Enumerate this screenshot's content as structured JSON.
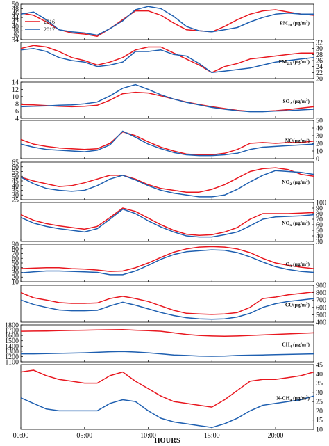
{
  "colors": {
    "y2016": "#e8171f",
    "y2017": "#1e5fb0",
    "axis": "#000000"
  },
  "chart_data": {
    "type": "line",
    "xlabel": "HOURS",
    "x": [
      0,
      1,
      2,
      3,
      4,
      5,
      6,
      7,
      8,
      9,
      10,
      11,
      12,
      13,
      14,
      15,
      16,
      17,
      18,
      19,
      20,
      21,
      22,
      23
    ],
    "x_tick_labels": [
      {
        "x": 0,
        "label": "00:00"
      },
      {
        "x": 5,
        "label": "05:00"
      },
      {
        "x": 10,
        "label": "10:00"
      },
      {
        "x": 15,
        "label": "15:00"
      },
      {
        "x": 20,
        "label": "20:00"
      }
    ],
    "legend": [
      {
        "key": "y2016",
        "label": "2016"
      },
      {
        "key": "y2017",
        "label": "2017"
      }
    ],
    "legend_position": "top-left of first panel",
    "panels": [
      {
        "label": {
          "base": "PM",
          "sub": "10",
          "tail": " (µg/m",
          "sup": "3",
          "close": ")"
        },
        "axis_side": "left",
        "ylim": [
          34,
          50
        ],
        "ticks": [
          34,
          36,
          38,
          40,
          42,
          44,
          46,
          48,
          50
        ],
        "series": [
          {
            "key": "y2016",
            "values": [
              46,
              45,
              42,
              38.5,
              37,
              36.5,
              35.5,
              39,
              43,
              47,
              47,
              45,
              41.5,
              38.5,
              38,
              37.5,
              40,
              43,
              45.5,
              47,
              47.5,
              46.5,
              45.5,
              45
            ]
          },
          {
            "key": "y2017",
            "values": [
              45.5,
              46.5,
              43,
              38.5,
              37.5,
              37,
              36,
              39,
              42.5,
              47.5,
              49,
              48,
              44.5,
              40,
              38,
              37.5,
              38.5,
              39.5,
              42,
              44,
              45.5,
              46,
              45.5,
              45.5
            ]
          }
        ]
      },
      {
        "label": {
          "base": "PM",
          "sub": "2.5",
          "tail": " (µg/m",
          "sup": "3",
          "close": ")"
        },
        "axis_side": "right",
        "ylim": [
          20,
          32
        ],
        "ticks": [
          20,
          22,
          24,
          26,
          28,
          30,
          32
        ],
        "series": [
          {
            "key": "y2016",
            "values": [
              30,
              31,
              30.5,
              29,
              27,
              26,
              24.5,
              25.5,
              27,
              29.5,
              30.5,
              30.5,
              28.5,
              26.5,
              24.5,
              22,
              24,
              25,
              26.5,
              27,
              27.5,
              28,
              28.5,
              28.5
            ]
          },
          {
            "key": "y2017",
            "values": [
              29.5,
              30,
              29,
              27,
              26,
              25.5,
              24,
              24.5,
              25.5,
              29,
              29,
              29.5,
              28,
              27.5,
              25,
              22,
              22.5,
              23,
              23.5,
              24.5,
              25.5,
              26,
              26.5,
              27
            ]
          }
        ]
      },
      {
        "label": {
          "base": "SO",
          "sub": "2",
          "tail": " (µg/m",
          "sup": "3",
          "close": ")"
        },
        "axis_side": "left",
        "ylim": [
          4,
          14
        ],
        "ticks": [
          4,
          6,
          8,
          10,
          12,
          14
        ],
        "series": [
          {
            "key": "y2016",
            "values": [
              7.8,
              7.7,
              7.5,
              7.3,
              7.2,
              7.3,
              7.6,
              9,
              10.8,
              11.2,
              11,
              10.2,
              9.3,
              8.5,
              7.8,
              7.2,
              6.7,
              6.2,
              5.9,
              5.9,
              6.1,
              6.4,
              6.8,
              7.2
            ]
          },
          {
            "key": "y2017",
            "values": [
              7.2,
              7.3,
              7.4,
              7.6,
              7.7,
              8,
              8.5,
              10.2,
              12.3,
              13.3,
              12,
              10.5,
              9.3,
              8.4,
              7.7,
              7,
              6.5,
              6.1,
              5.8,
              5.8,
              6,
              6.1,
              6.3,
              6.5
            ]
          }
        ]
      },
      {
        "label": {
          "base": "NO",
          "sub": "",
          "tail": "(µg/m",
          "sup": "3",
          "close": ")"
        },
        "axis_side": "right",
        "ylim": [
          0,
          50
        ],
        "ticks": [
          0,
          10,
          20,
          30,
          40,
          50
        ],
        "series": [
          {
            "key": "y2016",
            "values": [
              25,
              19,
              16,
              14,
              13,
              12,
              13,
              20,
              35,
              30,
              22,
              15,
              10,
              6,
              5,
              5,
              7,
              12,
              20,
              21,
              20,
              21,
              21,
              23
            ]
          },
          {
            "key": "y2017",
            "values": [
              19,
              15,
              12,
              11,
              10,
              9,
              11,
              18,
              36,
              28,
              19,
              13,
              8,
              5,
              4,
              4,
              5,
              7,
              12,
              15,
              16,
              17,
              18,
              19
            ]
          }
        ]
      },
      {
        "label": {
          "base": "NO",
          "sub": "2",
          "tail": " (µg/m",
          "sup": "3",
          "close": ")"
        },
        "axis_side": "left",
        "ylim": [
          25,
          65
        ],
        "ticks": [
          25,
          30,
          35,
          40,
          45,
          50,
          55,
          60,
          65
        ],
        "series": [
          {
            "key": "y2016",
            "values": [
              49,
              45,
              42,
              39,
              40,
              43,
              47,
              51,
              51,
              47,
              41,
              37,
              35,
              33,
              33,
              36,
              41,
              48,
              55,
              58,
              59,
              57,
              52,
              50
            ]
          },
          {
            "key": "y2017",
            "values": [
              49,
              42,
              37,
              35,
              34,
              35,
              40,
              47,
              51,
              46,
              40,
              35,
              32,
              30,
              28,
              28,
              30,
              36,
              44,
              51,
              56,
              55,
              54,
              52
            ]
          }
        ]
      },
      {
        "label": {
          "base": "NO",
          "sub": "x",
          "tail": " (µg/m",
          "sup": "3",
          "close": ")"
        },
        "axis_side": "right",
        "ylim": [
          30,
          100
        ],
        "ticks": [
          30,
          40,
          50,
          60,
          70,
          80,
          90,
          100
        ],
        "series": [
          {
            "key": "y2016",
            "values": [
              78,
              68,
              62,
              58,
              55,
              52,
              57,
              73,
              90,
              84,
              72,
              60,
              50,
              43,
              41,
              42,
              47,
              55,
              70,
              80,
              80,
              80,
              81,
              82
            ]
          },
          {
            "key": "y2017",
            "values": [
              73,
              63,
              57,
              53,
              50,
              47,
              53,
              70,
              88,
              80,
              67,
              56,
              47,
              40,
              38,
              38,
              42,
              47,
              58,
              70,
              74,
              75,
              76,
              78
            ]
          }
        ]
      },
      {
        "label": {
          "base": "O",
          "sub": "3",
          "tail": " (µg/m",
          "sup": "3",
          "close": ")"
        },
        "axis_side": "left",
        "ylim": [
          10,
          90
        ],
        "ticks": [
          10,
          20,
          30,
          40,
          50,
          60,
          70,
          80,
          90
        ],
        "series": [
          {
            "key": "y2016",
            "values": [
              38,
              39,
              40,
              40,
              38,
              37,
              35,
              32,
              33,
              40,
              50,
              62,
              73,
              80,
              84,
              85,
              84,
              80,
              72,
              60,
              50,
              45,
              41,
              38
            ]
          },
          {
            "key": "y2017",
            "values": [
              29,
              31,
              33,
              33,
              32,
              31,
              30,
              25,
              25,
              33,
              45,
              58,
              68,
              74,
              76,
              78,
              77,
              72,
              63,
              52,
              42,
              36,
              32,
              30
            ]
          }
        ]
      },
      {
        "label": {
          "base": "CO",
          "sub": "",
          "tail": "(µg/m",
          "sup": "3",
          "close": ")"
        },
        "axis_side": "right",
        "ylim": [
          400,
          900
        ],
        "ticks": [
          400,
          500,
          600,
          700,
          800,
          900
        ],
        "series": [
          {
            "key": "y2016",
            "values": [
              800,
              730,
              700,
              665,
              655,
              655,
              660,
              720,
              750,
              720,
              680,
              620,
              560,
              520,
              510,
              505,
              510,
              530,
              600,
              720,
              740,
              770,
              790,
              810
            ]
          },
          {
            "key": "y2017",
            "values": [
              700,
              640,
              600,
              565,
              555,
              555,
              560,
              620,
              670,
              630,
              580,
              530,
              490,
              460,
              445,
              440,
              445,
              470,
              520,
              600,
              650,
              680,
              700,
              720
            ]
          }
        ]
      },
      {
        "label": {
          "base": "CH",
          "sub": "4",
          "tail": " (µg/m",
          "sup": "3",
          "close": ")"
        },
        "axis_side": "left",
        "ylim": [
          1100,
          1800
        ],
        "ticks": [
          1100,
          1200,
          1300,
          1400,
          1500,
          1600,
          1700,
          1800
        ],
        "series": [
          {
            "key": "y2016",
            "values": [
              1680,
              1682,
              1685,
              1690,
              1695,
              1700,
              1703,
              1708,
              1710,
              1700,
              1690,
              1680,
              1650,
              1620,
              1600,
              1590,
              1585,
              1590,
              1600,
              1610,
              1620,
              1630,
              1640,
              1650
            ]
          },
          {
            "key": "y2017",
            "values": [
              1250,
              1250,
              1255,
              1260,
              1265,
              1270,
              1280,
              1290,
              1295,
              1285,
              1270,
              1250,
              1230,
              1220,
              1210,
              1205,
              1210,
              1220,
              1225,
              1230,
              1235,
              1240,
              1245,
              1250
            ]
          }
        ]
      },
      {
        "label": {
          "base": "N-CH",
          "sub": "4",
          "tail": " (µg/m",
          "sup": "3",
          "close": ")"
        },
        "axis_side": "right",
        "ylim": [
          10,
          45
        ],
        "ticks": [
          10,
          15,
          20,
          25,
          30,
          35,
          40,
          45
        ],
        "series": [
          {
            "key": "y2016",
            "values": [
              41,
              42,
              39,
              37,
              36,
              35,
              35,
              39,
              41,
              36,
              32,
              28,
              25,
              24,
              23,
              22,
              26,
              31,
              36,
              37,
              37,
              38,
              39,
              41
            ]
          },
          {
            "key": "y2017",
            "values": [
              27,
              24,
              21,
              20,
              20,
              20,
              20,
              24,
              26,
              25,
              20,
              16,
              14,
              13,
              12,
              11,
              13,
              16,
              20,
              23,
              24,
              25,
              26,
              28
            ]
          }
        ]
      }
    ]
  }
}
